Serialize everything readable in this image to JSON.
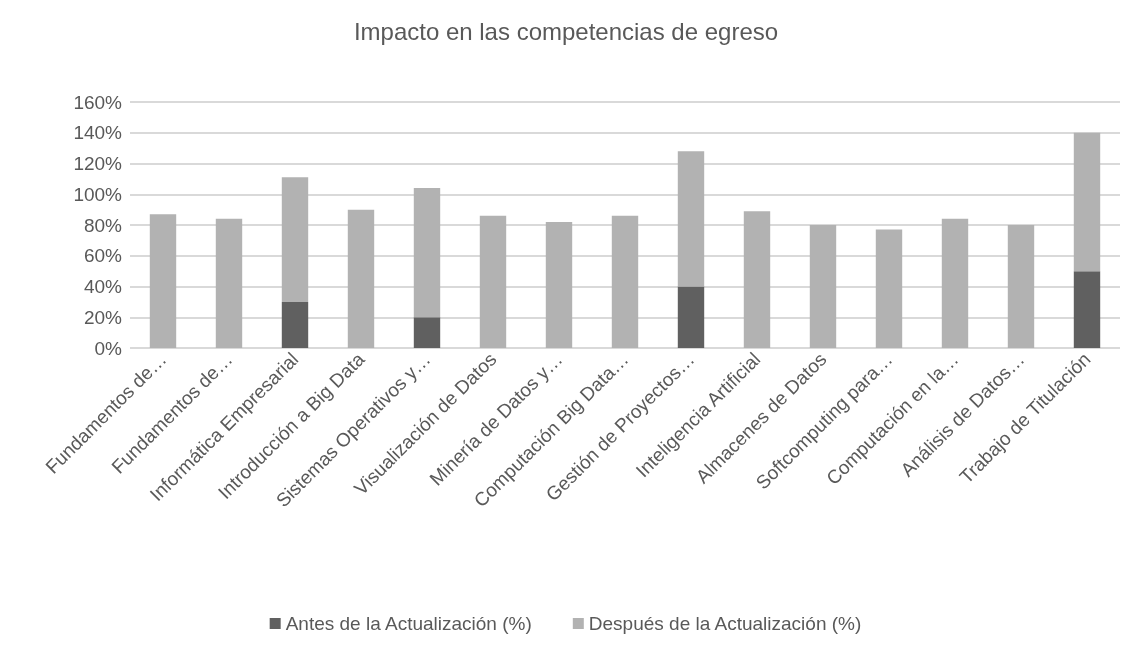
{
  "chart_data": {
    "type": "bar",
    "title": "Impacto en las competencias de egreso",
    "categories": [
      "Fundamentos de…",
      "Fundamentos de…",
      "Informática Empresarial",
      "Introducción a Big Data",
      "Sistemas Operativos y…",
      "Visualización de Datos",
      "Minería de Datos y…",
      "Computación Big Data…",
      "Gestión de Proyectos…",
      "Inteligencia Artificial",
      "Almacenes de Datos",
      "Softcomputing para…",
      "Computación en la…",
      "Análisis de Datos…",
      "Trabajo de Titulación"
    ],
    "series": [
      {
        "name": "Antes de la Actualización (%)",
        "color": "#606060",
        "values": [
          null,
          null,
          30,
          null,
          20,
          null,
          null,
          null,
          40,
          null,
          null,
          null,
          null,
          null,
          50
        ]
      },
      {
        "name": "Después de la Actualización (%)",
        "color": "#b2b2b2",
        "values": [
          87,
          84,
          81,
          90,
          84,
          86,
          82,
          86,
          88,
          89,
          80,
          77,
          84,
          80,
          90
        ]
      }
    ],
    "stacked": true,
    "ylim": [
      0,
      160
    ],
    "yticks": [
      {
        "value": 0,
        "label": "0%"
      },
      {
        "value": 20,
        "label": "20%"
      },
      {
        "value": 40,
        "label": "40%"
      },
      {
        "value": 60,
        "label": "60%"
      },
      {
        "value": 80,
        "label": "80%"
      },
      {
        "value": 100,
        "label": "100%"
      },
      {
        "value": 120,
        "label": "120%"
      },
      {
        "value": 140,
        "label": "140%"
      },
      {
        "value": 160,
        "label": "160%"
      }
    ],
    "grid": true,
    "legend": "bottom"
  }
}
